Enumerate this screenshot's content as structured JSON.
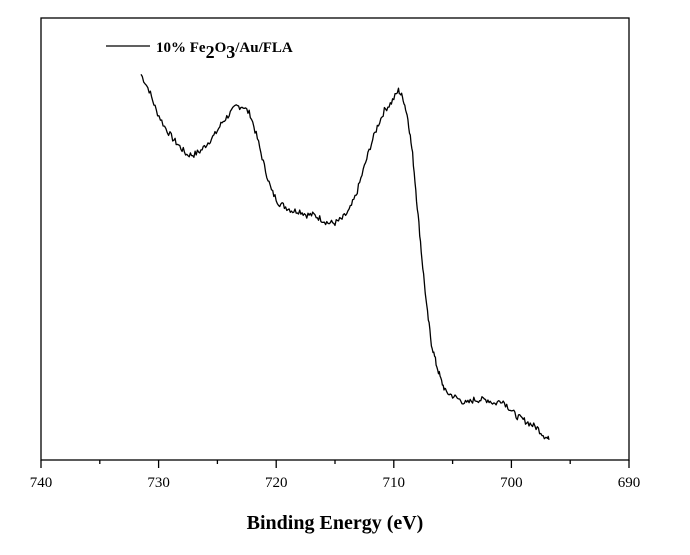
{
  "chart_data": {
    "type": "line",
    "title": "",
    "xlabel": "Binding Energy (eV)",
    "ylabel": "",
    "xlim": [
      740,
      690
    ],
    "x_reversed": true,
    "x_ticks": [
      740,
      730,
      720,
      710,
      700,
      690
    ],
    "y_ticks_shown": false,
    "grid": false,
    "legend_position": "top-left",
    "legend": {
      "text": "10% Fe",
      "sub1": "2",
      "mid": "O",
      "sub2": "3",
      "tail": "/Au/FLA"
    },
    "line_color": "#000000",
    "series": [
      {
        "name": "10% Fe2O3/Au/FLA",
        "x": [
          731.5,
          730.8,
          730.2,
          729.5,
          728.8,
          728.2,
          727.6,
          727.0,
          726.4,
          725.8,
          725.2,
          724.6,
          724.0,
          723.4,
          722.8,
          722.2,
          721.6,
          721.0,
          720.4,
          719.8,
          719.2,
          718.6,
          718.0,
          717.4,
          716.8,
          716.2,
          715.6,
          715.0,
          714.4,
          713.8,
          713.2,
          712.6,
          712.0,
          711.4,
          710.8,
          710.2,
          709.6,
          709.2,
          708.8,
          708.4,
          708.0,
          707.6,
          707.2,
          706.8,
          706.4,
          706.0,
          705.6,
          705.0,
          704.4,
          703.8,
          703.2,
          702.6,
          702.0,
          701.4,
          700.8,
          700.2,
          699.6,
          699.0,
          698.4,
          697.8,
          697.2,
          696.8
        ],
        "y": [
          96,
          92,
          87,
          83,
          80,
          78,
          76,
          76,
          77,
          79,
          81,
          84,
          86,
          88,
          88,
          86,
          80,
          73,
          67,
          64,
          63,
          62,
          62,
          61,
          61,
          60,
          59,
          59,
          60,
          62,
          66,
          72,
          78,
          83,
          87,
          89,
          92,
          90,
          85,
          76,
          63,
          50,
          38,
          29,
          24,
          20,
          17,
          16,
          15,
          14,
          15,
          15,
          15,
          14,
          15,
          13,
          11,
          10,
          9,
          8,
          6,
          5
        ]
      }
    ],
    "ylim": [
      0,
      110
    ]
  }
}
